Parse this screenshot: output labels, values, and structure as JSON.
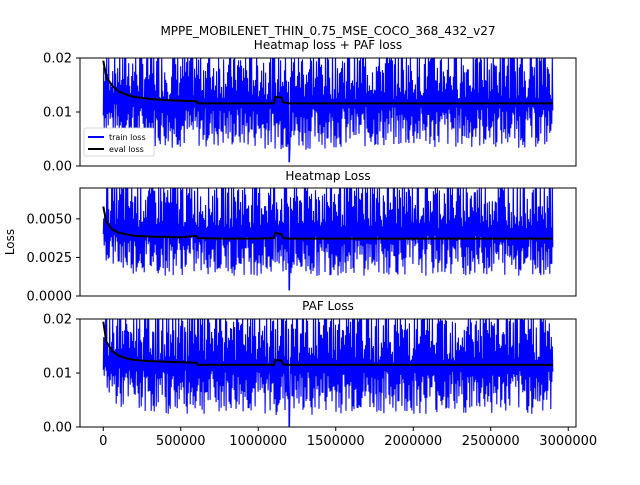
{
  "figure": {
    "title": "MPPE_MOBILENET_THIN_0.75_MSE_COCO_368_432_v27",
    "ylabel": "Loss"
  },
  "colors": {
    "train": "#0000ff",
    "eval": "#000000",
    "background": "#ffffff"
  },
  "chart_data": [
    {
      "type": "line",
      "title": "Heatmap loss + PAF loss",
      "ylim": [
        0.0,
        0.02
      ],
      "yticks": [
        0.0,
        0.01,
        0.02
      ],
      "ytick_labels": [
        "0.00",
        "0.01",
        "0.02"
      ],
      "show_xticks": false,
      "legend": {
        "placement": "lower-left",
        "entries": [
          "train loss",
          "eval loss"
        ]
      },
      "series": [
        {
          "name": "train loss",
          "color": "#0000ff",
          "style": "oscillating",
          "x_range": [
            0,
            2900000
          ],
          "envelope": {
            "x": [
              0,
              100000,
              200000,
              400000,
              600000,
              800000,
              1000000,
              1200000,
              1500000,
              2000000,
              2500000,
              2900000
            ],
            "low": [
              0.006,
              0.004,
              0.0035,
              0.003,
              0.003,
              0.003,
              0.003,
              0.0025,
              0.003,
              0.003,
              0.003,
              0.003
            ],
            "high": [
              0.02,
              0.02,
              0.02,
              0.02,
              0.02,
              0.02,
              0.02,
              0.02,
              0.02,
              0.02,
              0.02,
              0.02
            ],
            "min_spike": {
              "x": 1200000,
              "y": 0.0008
            }
          }
        },
        {
          "name": "eval loss",
          "color": "#000000",
          "x": [
            0,
            20000,
            60000,
            100000,
            150000,
            200000,
            300000,
            400000,
            500000,
            600000,
            610000,
            800000,
            1000000,
            1100000,
            1110000,
            1150000,
            1160000,
            1200000,
            1500000,
            2000000,
            2500000,
            2900000
          ],
          "y": [
            0.0195,
            0.0165,
            0.0148,
            0.0138,
            0.0132,
            0.0128,
            0.0124,
            0.0122,
            0.0121,
            0.012,
            0.0116,
            0.0116,
            0.0116,
            0.0116,
            0.0128,
            0.0127,
            0.0118,
            0.0116,
            0.0116,
            0.0116,
            0.0116,
            0.0116
          ]
        }
      ]
    },
    {
      "type": "line",
      "title": "Heatmap Loss",
      "ylim": [
        0.0,
        0.007
      ],
      "yticks": [
        0.0,
        0.0025,
        0.005
      ],
      "ytick_labels": [
        "0.0000",
        "0.0025",
        "0.0050"
      ],
      "show_xticks": false,
      "series": [
        {
          "name": "train loss",
          "color": "#0000ff",
          "style": "oscillating",
          "x_range": [
            0,
            2900000
          ],
          "envelope": {
            "x": [
              0,
              100000,
              200000,
              400000,
              600000,
              800000,
              1000000,
              1200000,
              1500000,
              2000000,
              2500000,
              2900000
            ],
            "low": [
              0.0022,
              0.0015,
              0.0013,
              0.0012,
              0.0012,
              0.0012,
              0.0012,
              0.001,
              0.0012,
              0.0012,
              0.0012,
              0.0012
            ],
            "high": [
              0.007,
              0.007,
              0.007,
              0.007,
              0.007,
              0.007,
              0.007,
              0.007,
              0.007,
              0.007,
              0.007,
              0.007
            ],
            "min_spike": {
              "x": 1200000,
              "y": 0.0004
            }
          }
        },
        {
          "name": "eval loss",
          "color": "#000000",
          "x": [
            0,
            20000,
            60000,
            100000,
            150000,
            200000,
            300000,
            400000,
            500000,
            600000,
            610000,
            800000,
            1000000,
            1100000,
            1110000,
            1150000,
            1160000,
            1200000,
            1500000,
            2000000,
            2500000,
            2900000
          ],
          "y": [
            0.0058,
            0.0048,
            0.0043,
            0.0041,
            0.004,
            0.0039,
            0.00385,
            0.00383,
            0.0038,
            0.0039,
            0.00375,
            0.00372,
            0.00372,
            0.00375,
            0.0041,
            0.004,
            0.00375,
            0.00372,
            0.00372,
            0.00372,
            0.00372,
            0.00372
          ]
        }
      ]
    },
    {
      "type": "line",
      "title": "PAF Loss",
      "ylim": [
        0.0,
        0.02
      ],
      "yticks": [
        0.0,
        0.01,
        0.02
      ],
      "ytick_labels": [
        "0.00",
        "0.01",
        "0.02"
      ],
      "show_xticks": true,
      "xlim": [
        -150000,
        3050000
      ],
      "xticks": [
        0,
        500000,
        1000000,
        1500000,
        2000000,
        2500000,
        3000000
      ],
      "xtick_labels": [
        "0",
        "500000",
        "1000000",
        "1500000",
        "2000000",
        "2500000",
        "3000000"
      ],
      "series": [
        {
          "name": "train loss",
          "color": "#0000ff",
          "style": "oscillating",
          "x_range": [
            0,
            2900000
          ],
          "envelope": {
            "x": [
              0,
              100000,
              200000,
              400000,
              600000,
              800000,
              1000000,
              1200000,
              1500000,
              2000000,
              2500000,
              2900000
            ],
            "low": [
              0.006,
              0.003,
              0.0025,
              0.002,
              0.002,
              0.002,
              0.002,
              0.0015,
              0.002,
              0.002,
              0.002,
              0.002
            ],
            "high": [
              0.02,
              0.02,
              0.02,
              0.02,
              0.02,
              0.02,
              0.02,
              0.02,
              0.02,
              0.02,
              0.02,
              0.02
            ],
            "min_spike": {
              "x": 1200000,
              "y": 0.0002
            }
          }
        },
        {
          "name": "eval loss",
          "color": "#000000",
          "x": [
            0,
            20000,
            60000,
            100000,
            150000,
            200000,
            300000,
            400000,
            500000,
            600000,
            610000,
            800000,
            1000000,
            1100000,
            1110000,
            1150000,
            1160000,
            1200000,
            1500000,
            2000000,
            2500000,
            2900000
          ],
          "y": [
            0.0195,
            0.0158,
            0.014,
            0.0132,
            0.0127,
            0.0124,
            0.0122,
            0.0121,
            0.012,
            0.0119,
            0.0115,
            0.0115,
            0.0115,
            0.0115,
            0.0124,
            0.0123,
            0.0116,
            0.0115,
            0.0115,
            0.0115,
            0.0115,
            0.0115
          ]
        }
      ]
    }
  ]
}
